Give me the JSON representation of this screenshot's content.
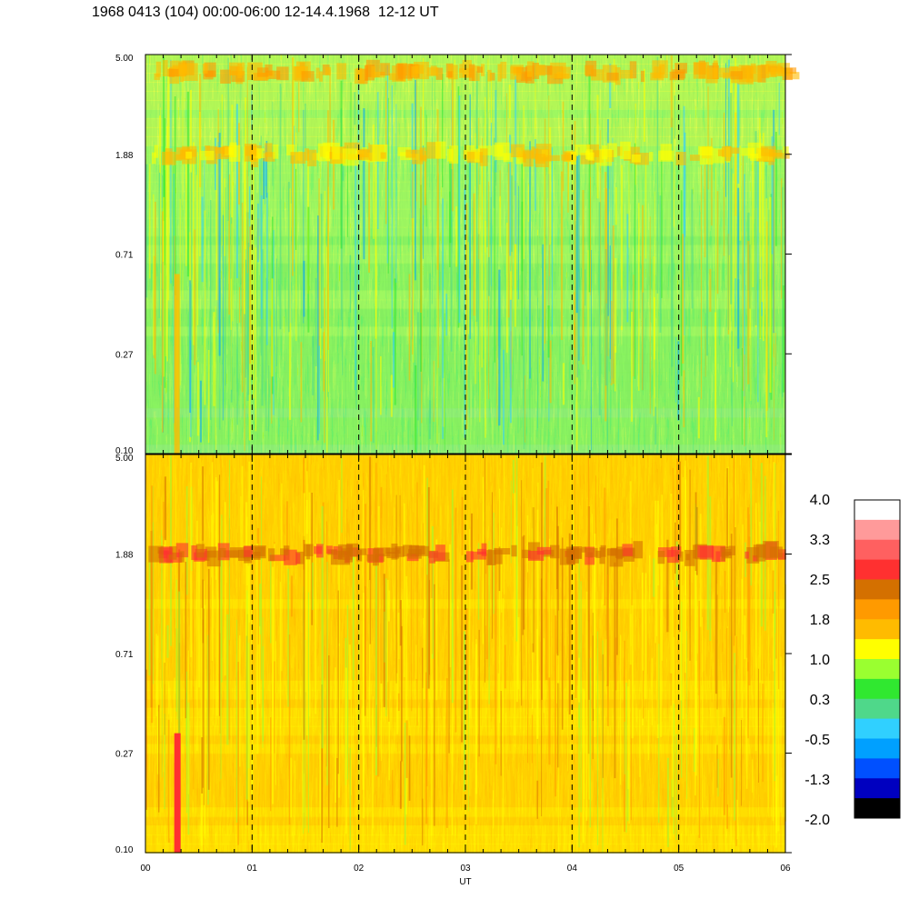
{
  "header": {
    "title": "1968 0413 (104) 00:00-06:00 12-14.4.1968  12-12 UT"
  },
  "chart_data": {
    "type": "heatmap",
    "title": "1968 0413 (104) 00:00-06:00 12-14.4.1968  12-12 UT",
    "xlabel": "UT",
    "x_ticks": [
      "00",
      "01",
      "02",
      "03",
      "04",
      "05",
      "06"
    ],
    "xlim": [
      0,
      6
    ],
    "y_scale": "log",
    "grid": "dashed vertical lines at each hour",
    "panels": [
      {
        "name": "",
        "y_ticks": [
          "5.00",
          "1.88",
          "0.71",
          "0.27",
          "0.10"
        ],
        "ylim": [
          0.1,
          5.0
        ],
        "dominant_levels": "green-yellow, about 0.3 to 1.5",
        "bands": [
          {
            "y": 4.2,
            "level": 1.6,
            "spread": 0.025
          },
          {
            "y": 1.88,
            "level": 1.3,
            "spread": 0.06
          }
        ]
      },
      {
        "name": "",
        "y_ticks": [
          "5.00",
          "1.88",
          "0.71",
          "0.27",
          "0.10"
        ],
        "ylim": [
          0.1,
          5.0
        ],
        "dominant_levels": "yellow-orange, about 1.0 to 2.5",
        "bands": [
          {
            "y": 1.88,
            "level": 2.4,
            "spread": 0.05
          }
        ]
      }
    ],
    "colorbar": {
      "labels": [
        "4.0",
        "3.3",
        "2.5",
        "1.8",
        "1.0",
        "0.3",
        "-0.5",
        "-1.3",
        "-2.0"
      ],
      "range": [
        -2.0,
        4.0
      ],
      "colors": [
        "#ffffff",
        "#ff9a9a",
        "#ff6060",
        "#ff3030",
        "#d47000",
        "#ff9a00",
        "#ffbb00",
        "#ffff00",
        "#9aff30",
        "#30e830",
        "#4fd88a",
        "#30d0ff",
        "#00a0ff",
        "#0050ff",
        "#0000c0",
        "#000000"
      ]
    }
  }
}
